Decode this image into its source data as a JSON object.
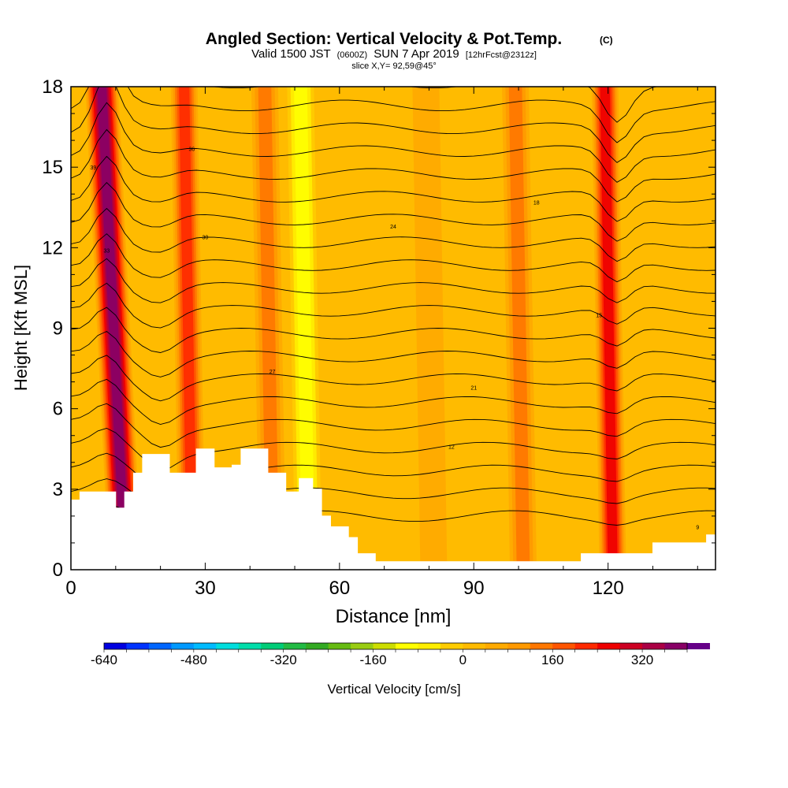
{
  "chart_data": {
    "type": "heatmap",
    "title": "Angled Section: Vertical Velocity & Pot.Temp.",
    "title_suffix": "(C)",
    "subtitle_parts": [
      "Valid 1500 JST",
      "(0600Z)",
      "SUN 7 Apr 2019",
      "[12hrFcst@2312z]"
    ],
    "subtitle2": "slice X,Y= 92,59@45°",
    "xlabel": "Distance [nm]",
    "ylabel": "Height [Kft MSL]",
    "xlim": [
      0,
      144
    ],
    "ylim": [
      0,
      18
    ],
    "x_ticks": [
      "0",
      "30",
      "60",
      "90",
      "120"
    ],
    "x_tick_values": [
      0,
      30,
      60,
      90,
      120
    ],
    "y_ticks": [
      "0",
      "3",
      "6",
      "9",
      "12",
      "15",
      "18"
    ],
    "y_tick_values": [
      0,
      3,
      6,
      9,
      12,
      15,
      18
    ],
    "colorbar": {
      "label": "Vertical Velocity [cm/s]",
      "min": -640,
      "max": 400,
      "step": 40,
      "tick_labels": [
        "-640",
        "-480",
        "-320",
        "-160",
        "0",
        "160",
        "320"
      ],
      "tick_values": [
        -640,
        -480,
        -320,
        -160,
        0,
        160,
        320
      ],
      "colors": [
        "#0000e0",
        "#0033ff",
        "#0066ff",
        "#0099ff",
        "#00bbff",
        "#00dddd",
        "#00ddaa",
        "#00cc77",
        "#22bb44",
        "#33aa22",
        "#66bb11",
        "#99cc11",
        "#ccdd00",
        "#ffff00",
        "#ffee00",
        "#ffcc00",
        "#ffbb00",
        "#ffaa00",
        "#ff9900",
        "#ff7700",
        "#ff5500",
        "#ff2a00",
        "#ee0000",
        "#cc0022",
        "#aa0044",
        "#880066",
        "#660088"
      ]
    },
    "vertical_velocity_bands": [
      {
        "x": 9,
        "value": 360
      },
      {
        "x": 26,
        "value": 200
      },
      {
        "x": 44,
        "value": 140
      },
      {
        "x": 52,
        "value": -140
      },
      {
        "x": 80,
        "value": 60
      },
      {
        "x": 100,
        "value": 120
      },
      {
        "x": 120,
        "value": 240
      }
    ],
    "terrain_kft": [
      [
        0,
        2.6
      ],
      [
        2,
        2.9
      ],
      [
        8,
        2.9
      ],
      [
        10,
        2.3
      ],
      [
        12,
        2.9
      ],
      [
        14,
        3.6
      ],
      [
        16,
        4.3
      ],
      [
        20,
        4.3
      ],
      [
        22,
        3.6
      ],
      [
        25,
        3.6
      ],
      [
        28,
        4.5
      ],
      [
        32,
        3.8
      ],
      [
        36,
        3.9
      ],
      [
        38,
        4.5
      ],
      [
        42,
        4.5
      ],
      [
        44,
        3.6
      ],
      [
        48,
        2.9
      ],
      [
        51,
        3.4
      ],
      [
        54,
        3.0
      ],
      [
        56,
        2.0
      ],
      [
        58,
        1.6
      ],
      [
        60,
        1.6
      ],
      [
        62,
        1.2
      ],
      [
        64,
        0.6
      ],
      [
        68,
        0.3
      ],
      [
        112,
        0.3
      ],
      [
        114,
        0.6
      ],
      [
        128,
        0.6
      ],
      [
        130,
        1.0
      ],
      [
        140,
        1.0
      ],
      [
        142,
        1.3
      ],
      [
        144,
        1.3
      ]
    ],
    "isotherm_labels": [
      "39",
      "36",
      "33",
      "30",
      "27",
      "24",
      "21",
      "18",
      "15",
      "12",
      "9"
    ],
    "isotherm_count": 20,
    "grid": false,
    "legend": "bottom"
  }
}
